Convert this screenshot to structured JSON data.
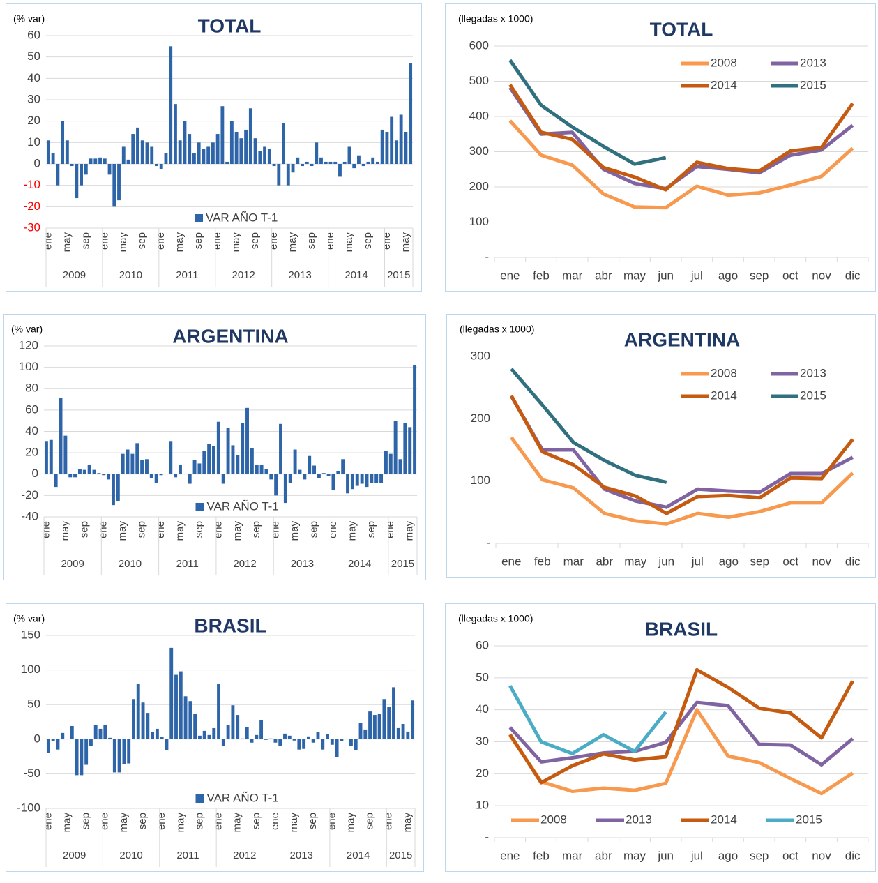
{
  "chart_data": [
    {
      "type": "bar",
      "title": "TOTAL",
      "ylabel": "(% var)",
      "ylim": [
        -30,
        60
      ],
      "yticks": [
        -30,
        -20,
        -10,
        0,
        10,
        20,
        30,
        40,
        50,
        60
      ],
      "grid": true,
      "negative_tick_color": "#ff0000",
      "legend": "lower center",
      "categories": [
        "ene",
        null,
        null,
        null,
        "may",
        null,
        null,
        null,
        "sep",
        null,
        null,
        null,
        "ene",
        null,
        null,
        null,
        "may",
        null,
        null,
        null,
        "sep",
        null,
        null,
        null,
        "ene",
        null,
        null,
        null,
        "may",
        null,
        null,
        null,
        "sep",
        null,
        null,
        null,
        "ene",
        null,
        null,
        null,
        "may",
        null,
        null,
        null,
        "sep",
        null,
        null,
        null,
        "ene",
        null,
        null,
        null,
        "may",
        null,
        null,
        null,
        "sep",
        null,
        null,
        null,
        "ene",
        null,
        null,
        null,
        "may",
        null,
        null,
        null,
        "sep",
        null,
        null,
        null,
        "ene",
        null,
        null,
        null,
        "may",
        null
      ],
      "groups": [
        "2009",
        "2010",
        "2011",
        "2012",
        "2013",
        "2014",
        "2015"
      ],
      "series": [
        {
          "name": "VAR AÑO T-1",
          "color": "#2e64a8",
          "values": [
            11,
            5,
            -10,
            20,
            11,
            -1,
            -16,
            -10,
            -5,
            2.5,
            2.5,
            3,
            2.5,
            -5,
            -20,
            -17,
            8,
            2,
            14,
            17,
            11,
            10,
            8,
            -1,
            -2.5,
            5,
            55,
            28,
            11,
            20,
            14,
            5,
            10,
            7,
            8,
            10,
            14,
            27,
            1,
            20,
            15,
            12,
            16,
            26,
            12,
            6,
            8,
            7,
            -1,
            -10,
            19,
            -10,
            -4,
            3,
            -1,
            1,
            -1,
            10,
            3,
            1,
            1,
            1,
            -6,
            1,
            8,
            -2,
            4,
            -1,
            1,
            3,
            1,
            16,
            15,
            22,
            11,
            23,
            15,
            47
          ]
        }
      ]
    },
    {
      "type": "line",
      "title": "TOTAL",
      "ylabel": "(llegadas x 1000)",
      "ylim": [
        0,
        600
      ],
      "yticks": [
        {
          "value": 0,
          "label": "-"
        },
        100,
        200,
        300,
        400,
        500,
        600
      ],
      "grid": true,
      "legend": "upper right",
      "categories": [
        "ene",
        "feb",
        "mar",
        "abr",
        "may",
        "jun",
        "jul",
        "ago",
        "sep",
        "oct",
        "nov",
        "dic"
      ],
      "series": [
        {
          "name": "2008",
          "color": "#f79a4f",
          "values": [
            388,
            290,
            262,
            180,
            143,
            141,
            202,
            177,
            183,
            205,
            230,
            310
          ]
        },
        {
          "name": "2013",
          "color": "#8064a2",
          "values": [
            482,
            350,
            355,
            250,
            210,
            195,
            258,
            250,
            240,
            290,
            305,
            375
          ]
        },
        {
          "name": "2014",
          "color": "#c55a11",
          "values": [
            490,
            355,
            335,
            255,
            228,
            192,
            270,
            252,
            245,
            302,
            312,
            437
          ]
        },
        {
          "name": "2015",
          "color": "#31707f",
          "values": [
            560,
            432,
            370,
            315,
            265,
            283,
            null,
            null,
            null,
            null,
            null,
            null
          ]
        }
      ]
    },
    {
      "type": "bar",
      "title": "ARGENTINA",
      "ylabel": "(% var)",
      "ylim": [
        -40,
        120
      ],
      "yticks": [
        -40,
        -20,
        0,
        20,
        40,
        60,
        80,
        100,
        120
      ],
      "grid": true,
      "legend": "lower center",
      "categories": [
        "ene",
        null,
        null,
        null,
        "may",
        null,
        null,
        null,
        "sep",
        null,
        null,
        null,
        "ene",
        null,
        null,
        null,
        "may",
        null,
        null,
        null,
        "sep",
        null,
        null,
        null,
        "ene",
        null,
        null,
        null,
        "may",
        null,
        null,
        null,
        "sep",
        null,
        null,
        null,
        "ene",
        null,
        null,
        null,
        "may",
        null,
        null,
        null,
        "sep",
        null,
        null,
        null,
        "ene",
        null,
        null,
        null,
        "may",
        null,
        null,
        null,
        "sep",
        null,
        null,
        null,
        "ene",
        null,
        null,
        null,
        "may",
        null,
        null,
        null,
        "sep",
        null,
        null,
        null,
        "ene",
        null,
        null,
        null,
        "may",
        null
      ],
      "groups": [
        "2009",
        "2010",
        "2011",
        "2012",
        "2013",
        "2014",
        "2015"
      ],
      "series": [
        {
          "name": "VAR AÑO T-1",
          "color": "#2e64a8",
          "values": [
            31,
            32,
            -12,
            71,
            36,
            -3,
            -3,
            5,
            4,
            9,
            4,
            1,
            -1,
            -5,
            -29,
            -25,
            19,
            23,
            19,
            29,
            13,
            14,
            -4,
            -8,
            -1,
            0,
            31,
            -3,
            9,
            0,
            -9,
            13,
            10,
            22,
            28,
            26,
            49,
            -9,
            43,
            27,
            18,
            48,
            62,
            24,
            9,
            9,
            5,
            -5,
            -20,
            47,
            -27,
            -8,
            23,
            4,
            -5,
            17,
            8,
            -4,
            1,
            -2,
            -15,
            3,
            14,
            -18,
            -14,
            -11,
            -9,
            -12,
            -8,
            -8,
            -8,
            22,
            19,
            50,
            14,
            48,
            44,
            102
          ]
        }
      ]
    },
    {
      "type": "line",
      "title": "ARGENTINA",
      "ylabel": "(llegadas x 1000)",
      "ylim": [
        0,
        300
      ],
      "yticks": [
        {
          "value": 0,
          "label": "-"
        },
        100,
        200,
        300
      ],
      "grid": false,
      "legend": "upper right",
      "categories": [
        "ene",
        "feb",
        "mar",
        "abr",
        "may",
        "jun",
        "jul",
        "ago",
        "sep",
        "oct",
        "nov",
        "dic"
      ],
      "series": [
        {
          "name": "2008",
          "color": "#f79a4f",
          "values": [
            170,
            102,
            89,
            48,
            36,
            31,
            48,
            42,
            51,
            65,
            65,
            113
          ]
        },
        {
          "name": "2013",
          "color": "#8064a2",
          "values": [
            236,
            150,
            150,
            87,
            68,
            58,
            87,
            84,
            82,
            112,
            112,
            138
          ]
        },
        {
          "name": "2014",
          "color": "#c55a11",
          "values": [
            237,
            147,
            126,
            90,
            76,
            48,
            75,
            77,
            73,
            105,
            104,
            167
          ]
        },
        {
          "name": "2015",
          "color": "#31707f",
          "values": [
            280,
            222,
            162,
            133,
            109,
            98,
            null,
            null,
            null,
            null,
            null,
            null
          ]
        }
      ]
    },
    {
      "type": "bar",
      "title": "BRASIL",
      "ylabel": "(% var)",
      "ylim": [
        -100,
        150
      ],
      "yticks": [
        -100,
        -50,
        0,
        50,
        100,
        150
      ],
      "grid": true,
      "legend": "lower center",
      "categories": [
        "ene",
        null,
        null,
        null,
        "may",
        null,
        null,
        null,
        "sep",
        null,
        null,
        null,
        "ene",
        null,
        null,
        null,
        "may",
        null,
        null,
        null,
        "sep",
        null,
        null,
        null,
        "ene",
        null,
        null,
        null,
        "may",
        null,
        null,
        null,
        "sep",
        null,
        null,
        null,
        "ene",
        null,
        null,
        null,
        "may",
        null,
        null,
        null,
        "sep",
        null,
        null,
        null,
        "ene",
        null,
        null,
        null,
        "may",
        null,
        null,
        null,
        "sep",
        null,
        null,
        null,
        "ene",
        null,
        null,
        null,
        "may",
        null,
        null,
        null,
        "sep",
        null,
        null,
        null,
        "ene",
        null,
        null,
        null,
        "may",
        null
      ],
      "groups": [
        "2009",
        "2010",
        "2011",
        "2012",
        "2013",
        "2014",
        "2015"
      ],
      "series": [
        {
          "name": "VAR AÑO T-1",
          "color": "#2e64a8",
          "values": [
            -20,
            -3,
            -15,
            9,
            0,
            19,
            -52,
            -52,
            -37,
            -10,
            20,
            15,
            21,
            2,
            -48,
            -48,
            -36,
            -35,
            58,
            80,
            53,
            38,
            10,
            15,
            3,
            -16,
            132,
            93,
            98,
            62,
            55,
            37,
            5,
            12,
            6,
            16,
            80,
            -10,
            20,
            49,
            35,
            1,
            17,
            -5,
            6,
            28,
            -1,
            1,
            -5,
            -10,
            8,
            5,
            -2,
            -15,
            -14,
            4,
            -5,
            10,
            -15,
            7,
            -8,
            -26,
            -3,
            0,
            -10,
            -16,
            24,
            14,
            40,
            35,
            37,
            58,
            47,
            75,
            16,
            22,
            11,
            56
          ]
        }
      ]
    },
    {
      "type": "line",
      "title": "BRASIL",
      "ylabel": "(llegadas x 1000)",
      "ylim": [
        0,
        60
      ],
      "yticks": [
        {
          "value": 0,
          "label": "-"
        },
        10,
        20,
        30,
        40,
        50,
        60
      ],
      "grid": true,
      "legend": "lower center",
      "categories": [
        "ene",
        "feb",
        "mar",
        "abr",
        "may",
        "jun",
        "jul",
        "ago",
        "sep",
        "oct",
        "nov",
        "dic"
      ],
      "series": [
        {
          "name": "2008",
          "color": "#f79a4f",
          "values": [
            32,
            17.5,
            14.5,
            15.5,
            14.8,
            17,
            40,
            25.5,
            23.5,
            18.5,
            13.8,
            20.2
          ]
        },
        {
          "name": "2013",
          "color": "#8064a2",
          "values": [
            34.5,
            23.7,
            25,
            26.5,
            27,
            29.8,
            42.3,
            41.3,
            29.2,
            29,
            22.8,
            31
          ]
        },
        {
          "name": "2014",
          "color": "#c55a11",
          "values": [
            32.3,
            17.2,
            22.5,
            26.2,
            24.3,
            25.3,
            52.5,
            47,
            40.5,
            39,
            31.2,
            49
          ]
        },
        {
          "name": "2015",
          "color": "#4bacc6",
          "values": [
            47.5,
            30,
            26.3,
            32.2,
            27,
            39.3,
            null,
            null,
            null,
            null,
            null,
            null
          ]
        }
      ]
    }
  ]
}
